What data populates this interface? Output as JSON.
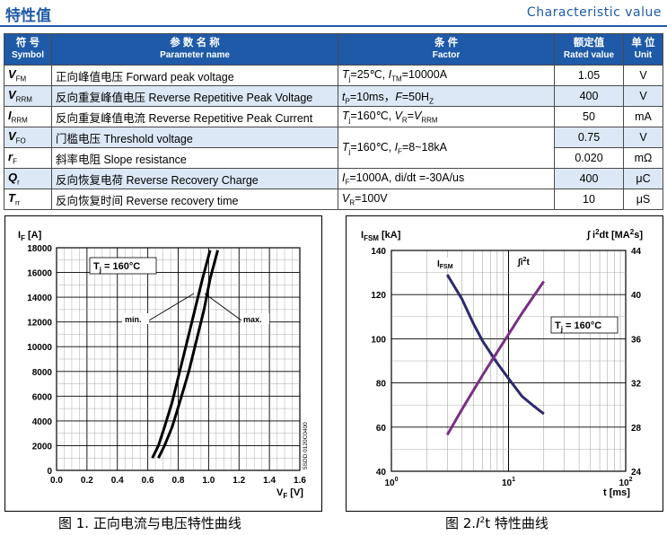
{
  "header": {
    "title": "特性值",
    "title_en": "Characteristic value"
  },
  "table": {
    "columns": [
      {
        "cn": "符 号",
        "en": "Symbol"
      },
      {
        "cn": "参 数 名 称",
        "en": "Parameter name"
      },
      {
        "cn": "条 件",
        "en": "Factor"
      },
      {
        "cn": "额定值",
        "en": "Rated value"
      },
      {
        "cn": "单 位",
        "en": "Unit"
      }
    ],
    "rows": [
      {
        "sym": "V",
        "sub": "FM",
        "name": "正向峰值电压 Forward peak voltage",
        "value": "1.05",
        "unit": "V"
      },
      {
        "sym": "V",
        "sub": "RRM",
        "name": "反向重复峰值电压 Reverse Repetitive Peak Voltage",
        "value": "400",
        "unit": "V"
      },
      {
        "sym": "I",
        "sub": "RRM",
        "name": "反向重复峰值电流 Reverse Repetitive Peak Current",
        "value": "50",
        "unit": "mA"
      },
      {
        "sym": "V",
        "sub": "FO",
        "name": "门槛电压 Threshold voltage",
        "value": "0.75",
        "unit": "V"
      },
      {
        "sym": "r",
        "sub": "F",
        "name": "斜率电阻 Slope resistance",
        "value": "0.020",
        "unit": "mΩ"
      },
      {
        "sym": "Q",
        "sub": "r",
        "name": "反向恢复电荷 Reverse Recovery Charge",
        "value": "400",
        "unit": "μC"
      },
      {
        "sym": "T",
        "sub": "rr",
        "name": "反向恢复时间 Reverse recovery time",
        "value": "10",
        "unit": "μS"
      }
    ],
    "conditions": {
      "c1_a": "=25℃, ",
      "c1_b": "=10000A",
      "c2_a": "=10ms，",
      "c2_b": "=50H",
      "c3_a": "=160℃, ",
      "c3_b": "=",
      "c4_a": "=160℃, ",
      "c4_b": "=8~18kA",
      "c5_a": "=1000A,  di/dt =-30A/us",
      "c6_a": "=100V"
    }
  },
  "chart_data": [
    {
      "type": "line",
      "xlabel": "V_F [V]",
      "ylabel": "I_F [A]",
      "xlim": [
        0,
        1.6
      ],
      "ylim": [
        0,
        18000
      ],
      "xticks": [
        "0.0",
        "0.2",
        "0.4",
        "0.6",
        "0.8",
        "1.0",
        "1.2",
        "1.4",
        "1.6"
      ],
      "yticks": [
        "0",
        "2000",
        "4000",
        "6000",
        "8000",
        "10000",
        "12000",
        "14000",
        "16000",
        "18000"
      ],
      "annotation": "Tj = 160°C",
      "side_note": "5SDD 0120C0400",
      "series": [
        {
          "name": "min.",
          "x": [
            0.63,
            0.67,
            0.71,
            0.76,
            0.81,
            0.86,
            0.91,
            0.96,
            1.01
          ],
          "y": [
            1000,
            2000,
            3500,
            5500,
            8000,
            10500,
            13000,
            15500,
            17800
          ]
        },
        {
          "name": "max.",
          "x": [
            0.67,
            0.71,
            0.76,
            0.81,
            0.87,
            0.92,
            0.97,
            1.01,
            1.06
          ],
          "y": [
            1000,
            2000,
            3500,
            5500,
            8000,
            10500,
            13000,
            15500,
            17800
          ]
        }
      ]
    },
    {
      "type": "line",
      "xlabel": "t [ms]",
      "ylabel": "I_FSM [kA]",
      "ylabel_right": "∫ i²dt [MA²s]",
      "xscale": "log",
      "xlim": [
        1,
        100
      ],
      "ylim": [
        40,
        140
      ],
      "ylim_right": [
        24,
        44
      ],
      "xticks": [
        "10^0",
        "10^1",
        "10^2"
      ],
      "yticks": [
        "40",
        "60",
        "80",
        "100",
        "120",
        "140"
      ],
      "yticks_right": [
        "24",
        "28",
        "32",
        "36",
        "40",
        "44"
      ],
      "annotation": "Tj = 160°C",
      "series": [
        {
          "name": "I_FSM",
          "x": [
            3,
            4,
            5,
            6,
            8,
            10,
            13,
            16,
            20
          ],
          "y": [
            129,
            118,
            107,
            99,
            89,
            82,
            74,
            70,
            66
          ]
        },
        {
          "name": "∫i²t",
          "x": [
            3,
            4,
            5,
            6,
            8,
            10,
            13,
            16,
            20
          ],
          "y": [
            27.3,
            29.6,
            31.3,
            32.7,
            34.8,
            36.4,
            38.3,
            39.7,
            41.2
          ]
        }
      ]
    }
  ],
  "captions": {
    "fig1": "图 1. 正向电流与电压特性曲线",
    "fig2": "图 2.I²t 特性曲线"
  }
}
